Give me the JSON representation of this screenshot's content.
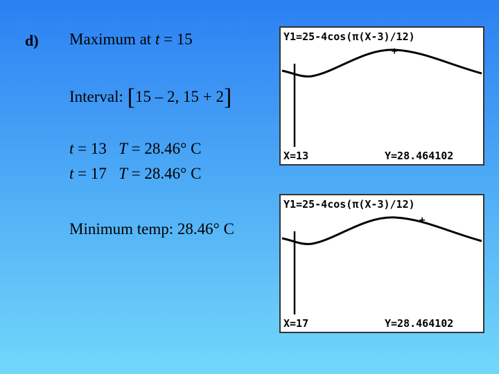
{
  "part": "d)",
  "maximum": [
    "Maximum at",
    "t",
    "= 15"
  ],
  "interval": [
    "Interval:",
    "[",
    "15 – 2, 15 + 2",
    "]"
  ],
  "points": [
    [
      "t",
      "= 13",
      "T",
      "= 28.46° C"
    ],
    [
      "t",
      "= 17",
      "T",
      "= 28.46° C"
    ]
  ],
  "minimum": "Minimum temp: 28.46° C",
  "screens": [
    {
      "equation": "Y1=25-4cos(π(X-3)/12)",
      "x": "X=13",
      "y": "Y=28.464102"
    },
    {
      "equation": "Y1=25-4cos(π(X-3)/12)",
      "x": "X=17",
      "y": "Y=28.464102"
    }
  ]
}
